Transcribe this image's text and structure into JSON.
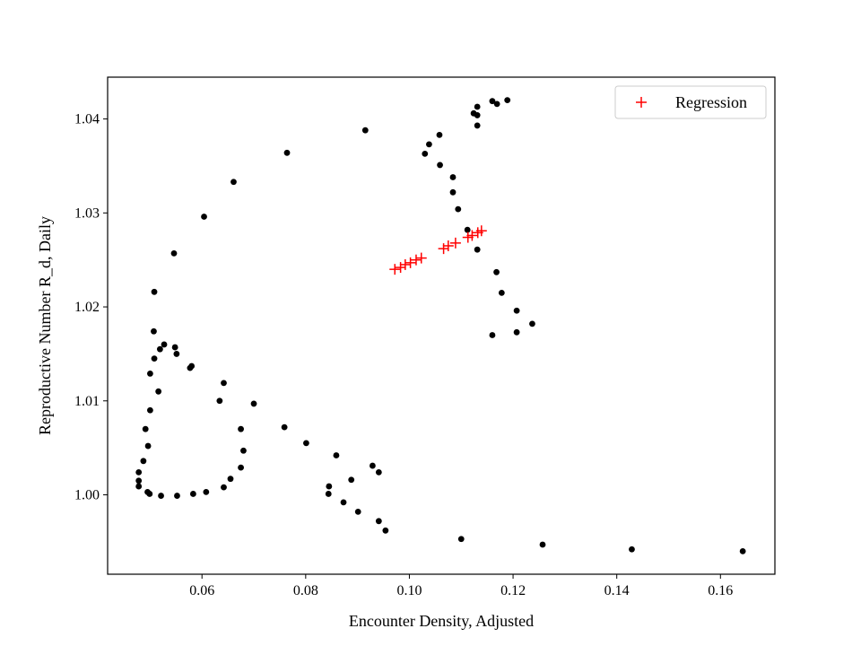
{
  "chart_data": {
    "type": "scatter",
    "title": "",
    "xlabel": "Encounter Density, Adjusted",
    "ylabel": "Reproductive Number R_d, Daily",
    "xlim": [
      0.0418,
      0.1705
    ],
    "ylim": [
      0.99155,
      1.04445
    ],
    "xticks": [
      0.06,
      0.08,
      0.1,
      0.12,
      0.14,
      0.16
    ],
    "xtick_labels": [
      "0.06",
      "0.08",
      "0.10",
      "0.12",
      "0.14",
      "0.16"
    ],
    "yticks": [
      1.0,
      1.01,
      1.02,
      1.03,
      1.04
    ],
    "ytick_labels": [
      "1.00",
      "1.01",
      "1.02",
      "1.03",
      "1.04"
    ],
    "grid": false,
    "legend": {
      "placement": "upper-right",
      "entries": [
        "Regression"
      ]
    },
    "series": [
      {
        "name": "",
        "marker": "dot",
        "color": "#000000",
        "points": [
          [
            0.0915,
            1.0388
          ],
          [
            0.0764,
            1.0364
          ],
          [
            0.0661,
            1.0333
          ],
          [
            0.0604,
            1.0296
          ],
          [
            0.0546,
            1.0257
          ],
          [
            0.0508,
            1.0216
          ],
          [
            0.0507,
            1.0174
          ],
          [
            0.0527,
            1.016
          ],
          [
            0.0548,
            1.0157
          ],
          [
            0.0551,
            1.015
          ],
          [
            0.0519,
            1.0155
          ],
          [
            0.0508,
            1.0145
          ],
          [
            0.058,
            1.0137
          ],
          [
            0.0577,
            1.0135
          ],
          [
            0.05,
            1.0129
          ],
          [
            0.0642,
            1.0119
          ],
          [
            0.0516,
            1.011
          ],
          [
            0.0634,
            1.01
          ],
          [
            0.07,
            1.0097
          ],
          [
            0.05,
            1.009
          ],
          [
            0.0759,
            1.0072
          ],
          [
            0.0675,
            1.007
          ],
          [
            0.0491,
            1.007
          ],
          [
            0.0496,
            1.0052
          ],
          [
            0.068,
            1.0047
          ],
          [
            0.0801,
            1.0055
          ],
          [
            0.0487,
            1.0036
          ],
          [
            0.0859,
            1.0042
          ],
          [
            0.0929,
            1.0031
          ],
          [
            0.0941,
            1.0024
          ],
          [
            0.0675,
            1.0029
          ],
          [
            0.0478,
            1.0024
          ],
          [
            0.0888,
            1.0016
          ],
          [
            0.0655,
            1.0017
          ],
          [
            0.0478,
            1.0015
          ],
          [
            0.0478,
            1.0009
          ],
          [
            0.0845,
            1.0009
          ],
          [
            0.0642,
            1.0008
          ],
          [
            0.0495,
            1.0003
          ],
          [
            0.0608,
            1.0003
          ],
          [
            0.0499,
            1.0001
          ],
          [
            0.0583,
            1.0001
          ],
          [
            0.0844,
            1.0001
          ],
          [
            0.0521,
            0.9999
          ],
          [
            0.0552,
            0.9999
          ],
          [
            0.0873,
            0.9992
          ],
          [
            0.0901,
            0.9982
          ],
          [
            0.0941,
            0.9972
          ],
          [
            0.0954,
            0.9962
          ],
          [
            0.11,
            0.9953
          ],
          [
            0.1257,
            0.9947
          ],
          [
            0.1429,
            0.9942
          ],
          [
            0.1643,
            0.994
          ],
          [
            0.116,
            1.0419
          ],
          [
            0.1169,
            1.0416
          ],
          [
            0.1189,
            1.042
          ],
          [
            0.1131,
            1.0413
          ],
          [
            0.1124,
            1.0406
          ],
          [
            0.1131,
            1.0404
          ],
          [
            0.1131,
            1.0393
          ],
          [
            0.1058,
            1.0383
          ],
          [
            0.1038,
            1.0373
          ],
          [
            0.103,
            1.0363
          ],
          [
            0.1059,
            1.0351
          ],
          [
            0.1084,
            1.0338
          ],
          [
            0.1084,
            1.0322
          ],
          [
            0.1094,
            1.0304
          ],
          [
            0.1112,
            1.0282
          ],
          [
            0.1131,
            1.0261
          ],
          [
            0.1168,
            1.0237
          ],
          [
            0.1178,
            1.0215
          ],
          [
            0.1207,
            1.0196
          ],
          [
            0.1237,
            1.0182
          ],
          [
            0.1207,
            1.0173
          ],
          [
            0.116,
            1.017
          ]
        ]
      },
      {
        "name": "Regression",
        "marker": "plus",
        "color": "#ff0000",
        "points": [
          [
            0.0972,
            1.024
          ],
          [
            0.0983,
            1.0242
          ],
          [
            0.0992,
            1.0245
          ],
          [
            0.1002,
            1.0247
          ],
          [
            0.1013,
            1.025
          ],
          [
            0.1023,
            1.0252
          ],
          [
            0.1066,
            1.0262
          ],
          [
            0.1075,
            1.0265
          ],
          [
            0.1089,
            1.0268
          ],
          [
            0.1113,
            1.0274
          ],
          [
            0.1121,
            1.0276
          ],
          [
            0.1132,
            1.0279
          ],
          [
            0.1139,
            1.0281
          ]
        ]
      }
    ]
  }
}
